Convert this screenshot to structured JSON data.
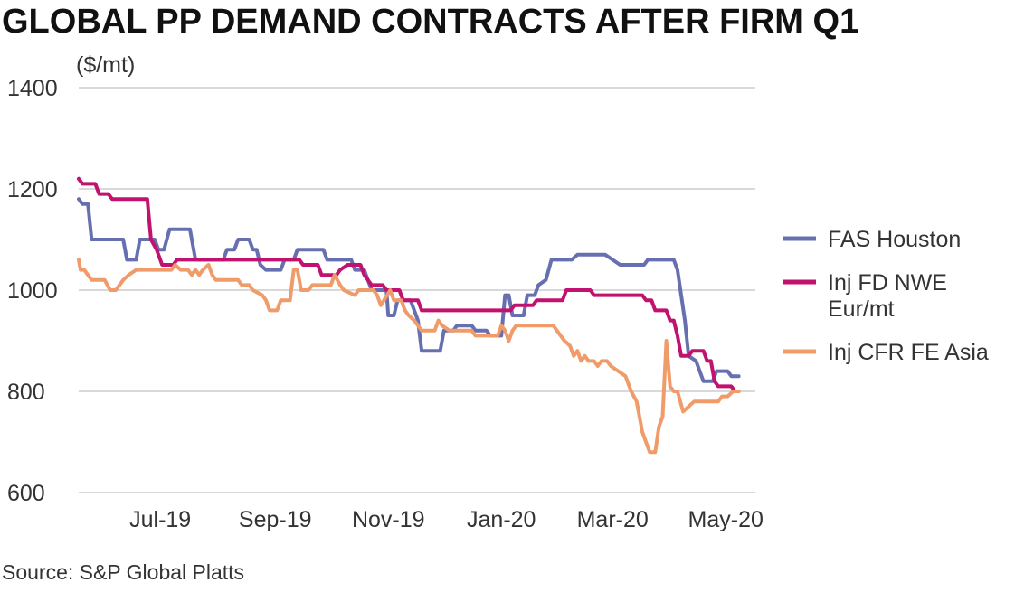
{
  "chart_data": {
    "type": "line",
    "title": "GLOBAL PP DEMAND CONTRACTS AFTER FIRM Q1",
    "ylabel": "($/mt)",
    "xlabel": "",
    "ylim": [
      600,
      1400
    ],
    "yticks": [
      600,
      800,
      1000,
      1200,
      1400
    ],
    "xlim": [
      "2019-06-01",
      "2020-05-31"
    ],
    "xticks": [
      {
        "label": "Jul-19",
        "date": "2019-07-01"
      },
      {
        "label": "Sep-19",
        "date": "2019-09-01"
      },
      {
        "label": "Nov-19",
        "date": "2019-11-01"
      },
      {
        "label": "Jan-20",
        "date": "2020-01-01"
      },
      {
        "label": "Mar-20",
        "date": "2020-03-01"
      },
      {
        "label": "May-20",
        "date": "2020-05-01"
      }
    ],
    "grid": true,
    "legend_position": "right",
    "series": [
      {
        "name": "FAS Houston",
        "color": "#6670b0",
        "points": [
          [
            "2019-06-01",
            1180
          ],
          [
            "2019-06-03",
            1170
          ],
          [
            "2019-06-06",
            1170
          ],
          [
            "2019-06-08",
            1100
          ],
          [
            "2019-06-25",
            1100
          ],
          [
            "2019-06-27",
            1060
          ],
          [
            "2019-07-02",
            1060
          ],
          [
            "2019-07-04",
            1100
          ],
          [
            "2019-07-12",
            1100
          ],
          [
            "2019-07-14",
            1080
          ],
          [
            "2019-07-17",
            1080
          ],
          [
            "2019-07-20",
            1120
          ],
          [
            "2019-07-31",
            1120
          ],
          [
            "2019-08-03",
            1060
          ],
          [
            "2019-08-18",
            1060
          ],
          [
            "2019-08-20",
            1080
          ],
          [
            "2019-08-24",
            1080
          ],
          [
            "2019-08-26",
            1100
          ],
          [
            "2019-09-01",
            1100
          ],
          [
            "2019-09-03",
            1080
          ],
          [
            "2019-09-05",
            1080
          ],
          [
            "2019-09-07",
            1050
          ],
          [
            "2019-09-10",
            1040
          ],
          [
            "2019-09-18",
            1040
          ],
          [
            "2019-09-20",
            1060
          ],
          [
            "2019-09-25",
            1060
          ],
          [
            "2019-09-27",
            1080
          ],
          [
            "2019-10-11",
            1080
          ],
          [
            "2019-10-13",
            1060
          ],
          [
            "2019-10-26",
            1060
          ],
          [
            "2019-10-28",
            1040
          ],
          [
            "2019-11-02",
            1040
          ],
          [
            "2019-11-04",
            1020
          ],
          [
            "2019-11-06",
            1000
          ],
          [
            "2019-11-14",
            1000
          ],
          [
            "2019-11-15",
            950
          ],
          [
            "2019-11-18",
            950
          ],
          [
            "2019-11-20",
            980
          ],
          [
            "2019-11-27",
            980
          ],
          [
            "2019-12-01",
            940
          ],
          [
            "2019-12-03",
            880
          ],
          [
            "2019-12-13",
            880
          ],
          [
            "2019-12-15",
            920
          ],
          [
            "2019-12-20",
            920
          ],
          [
            "2019-12-22",
            930
          ],
          [
            "2019-12-30",
            930
          ],
          [
            "2020-01-01",
            920
          ],
          [
            "2020-01-07",
            920
          ],
          [
            "2020-01-09",
            910
          ],
          [
            "2020-01-15",
            910
          ],
          [
            "2020-01-17",
            990
          ],
          [
            "2020-01-19",
            990
          ],
          [
            "2020-01-21",
            950
          ],
          [
            "2020-01-27",
            950
          ],
          [
            "2020-01-29",
            990
          ],
          [
            "2020-02-02",
            990
          ],
          [
            "2020-02-04",
            1010
          ],
          [
            "2020-02-08",
            1020
          ],
          [
            "2020-02-11",
            1060
          ],
          [
            "2020-02-22",
            1060
          ],
          [
            "2020-02-25",
            1070
          ],
          [
            "2020-03-11",
            1070
          ],
          [
            "2020-03-15",
            1060
          ],
          [
            "2020-03-19",
            1050
          ],
          [
            "2020-04-01",
            1050
          ],
          [
            "2020-04-03",
            1060
          ],
          [
            "2020-04-17",
            1060
          ],
          [
            "2020-04-19",
            1040
          ],
          [
            "2020-04-21",
            990
          ],
          [
            "2020-04-23",
            940
          ],
          [
            "2020-04-25",
            870
          ],
          [
            "2020-04-29",
            860
          ],
          [
            "2020-05-03",
            820
          ],
          [
            "2020-05-08",
            820
          ],
          [
            "2020-05-10",
            840
          ],
          [
            "2020-05-16",
            840
          ],
          [
            "2020-05-18",
            830
          ],
          [
            "2020-05-22",
            830
          ]
        ]
      },
      {
        "name": "Inj FD NWE Eur/mt",
        "color": "#c0126e",
        "points": [
          [
            "2019-06-01",
            1220
          ],
          [
            "2019-06-03",
            1210
          ],
          [
            "2019-06-10",
            1210
          ],
          [
            "2019-06-12",
            1190
          ],
          [
            "2019-06-17",
            1190
          ],
          [
            "2019-06-19",
            1180
          ],
          [
            "2019-07-08",
            1180
          ],
          [
            "2019-07-10",
            1100
          ],
          [
            "2019-07-13",
            1080
          ],
          [
            "2019-07-16",
            1050
          ],
          [
            "2019-07-22",
            1050
          ],
          [
            "2019-07-24",
            1060
          ],
          [
            "2019-09-28",
            1060
          ],
          [
            "2019-09-30",
            1050
          ],
          [
            "2019-10-08",
            1050
          ],
          [
            "2019-10-10",
            1030
          ],
          [
            "2019-10-18",
            1030
          ],
          [
            "2019-10-20",
            1040
          ],
          [
            "2019-10-24",
            1050
          ],
          [
            "2019-10-31",
            1050
          ],
          [
            "2019-11-02",
            1030
          ],
          [
            "2019-11-06",
            1010
          ],
          [
            "2019-11-12",
            1010
          ],
          [
            "2019-11-14",
            1000
          ],
          [
            "2019-11-21",
            1000
          ],
          [
            "2019-11-23",
            980
          ],
          [
            "2019-12-01",
            980
          ],
          [
            "2019-12-03",
            960
          ],
          [
            "2020-01-20",
            960
          ],
          [
            "2020-01-22",
            970
          ],
          [
            "2020-02-01",
            970
          ],
          [
            "2020-02-03",
            980
          ],
          [
            "2020-02-17",
            980
          ],
          [
            "2020-02-19",
            1000
          ],
          [
            "2020-03-03",
            1000
          ],
          [
            "2020-03-05",
            990
          ],
          [
            "2020-03-31",
            990
          ],
          [
            "2020-04-02",
            980
          ],
          [
            "2020-04-05",
            980
          ],
          [
            "2020-04-07",
            960
          ],
          [
            "2020-04-13",
            960
          ],
          [
            "2020-04-15",
            940
          ],
          [
            "2020-04-17",
            940
          ],
          [
            "2020-04-19",
            910
          ],
          [
            "2020-04-21",
            870
          ],
          [
            "2020-04-25",
            870
          ],
          [
            "2020-04-27",
            880
          ],
          [
            "2020-05-03",
            880
          ],
          [
            "2020-05-05",
            860
          ],
          [
            "2020-05-07",
            860
          ],
          [
            "2020-05-09",
            820
          ],
          [
            "2020-05-11",
            810
          ],
          [
            "2020-05-18",
            810
          ],
          [
            "2020-05-20",
            800
          ],
          [
            "2020-05-22",
            800
          ]
        ]
      },
      {
        "name": "Inj CFR FE Asia",
        "color": "#f09c6a",
        "points": [
          [
            "2019-06-01",
            1060
          ],
          [
            "2019-06-02",
            1040
          ],
          [
            "2019-06-04",
            1040
          ],
          [
            "2019-06-06",
            1030
          ],
          [
            "2019-06-08",
            1020
          ],
          [
            "2019-06-15",
            1020
          ],
          [
            "2019-06-18",
            1000
          ],
          [
            "2019-06-21",
            1000
          ],
          [
            "2019-06-23",
            1010
          ],
          [
            "2019-06-25",
            1020
          ],
          [
            "2019-06-28",
            1030
          ],
          [
            "2019-07-02",
            1040
          ],
          [
            "2019-07-21",
            1040
          ],
          [
            "2019-07-23",
            1050
          ],
          [
            "2019-07-26",
            1040
          ],
          [
            "2019-07-30",
            1040
          ],
          [
            "2019-08-01",
            1030
          ],
          [
            "2019-08-03",
            1040
          ],
          [
            "2019-08-05",
            1030
          ],
          [
            "2019-08-07",
            1040
          ],
          [
            "2019-08-10",
            1050
          ],
          [
            "2019-08-12",
            1030
          ],
          [
            "2019-08-14",
            1020
          ],
          [
            "2019-08-26",
            1020
          ],
          [
            "2019-08-28",
            1010
          ],
          [
            "2019-09-01",
            1010
          ],
          [
            "2019-09-03",
            1000
          ],
          [
            "2019-09-08",
            990
          ],
          [
            "2019-09-10",
            980
          ],
          [
            "2019-09-12",
            960
          ],
          [
            "2019-09-16",
            960
          ],
          [
            "2019-09-18",
            980
          ],
          [
            "2019-09-23",
            980
          ],
          [
            "2019-09-25",
            1040
          ],
          [
            "2019-09-27",
            1040
          ],
          [
            "2019-09-29",
            1000
          ],
          [
            "2019-10-03",
            1000
          ],
          [
            "2019-10-05",
            1010
          ],
          [
            "2019-10-15",
            1010
          ],
          [
            "2019-10-17",
            1030
          ],
          [
            "2019-10-20",
            1010
          ],
          [
            "2019-10-22",
            1000
          ],
          [
            "2019-10-28",
            990
          ],
          [
            "2019-10-30",
            1000
          ],
          [
            "2019-11-07",
            1000
          ],
          [
            "2019-11-09",
            990
          ],
          [
            "2019-11-11",
            970
          ],
          [
            "2019-11-16",
            1000
          ],
          [
            "2019-11-18",
            980
          ],
          [
            "2019-11-22",
            980
          ],
          [
            "2019-11-24",
            960
          ],
          [
            "2019-11-26",
            950
          ],
          [
            "2019-11-29",
            940
          ],
          [
            "2019-12-01",
            930
          ],
          [
            "2019-12-03",
            920
          ],
          [
            "2019-12-10",
            920
          ],
          [
            "2019-12-12",
            940
          ],
          [
            "2019-12-14",
            930
          ],
          [
            "2019-12-18",
            920
          ],
          [
            "2019-12-30",
            920
          ],
          [
            "2020-01-01",
            910
          ],
          [
            "2020-01-13",
            910
          ],
          [
            "2020-01-15",
            930
          ],
          [
            "2020-01-17",
            920
          ],
          [
            "2020-01-19",
            900
          ],
          [
            "2020-01-21",
            920
          ],
          [
            "2020-01-23",
            930
          ],
          [
            "2020-02-12",
            930
          ],
          [
            "2020-02-14",
            920
          ],
          [
            "2020-02-16",
            910
          ],
          [
            "2020-02-18",
            900
          ],
          [
            "2020-02-21",
            890
          ],
          [
            "2020-02-23",
            870
          ],
          [
            "2020-02-25",
            880
          ],
          [
            "2020-02-27",
            860
          ],
          [
            "2020-02-29",
            870
          ],
          [
            "2020-03-02",
            860
          ],
          [
            "2020-03-05",
            860
          ],
          [
            "2020-03-07",
            850
          ],
          [
            "2020-03-09",
            860
          ],
          [
            "2020-03-12",
            860
          ],
          [
            "2020-03-14",
            850
          ],
          [
            "2020-03-18",
            840
          ],
          [
            "2020-03-22",
            830
          ],
          [
            "2020-03-25",
            800
          ],
          [
            "2020-03-28",
            780
          ],
          [
            "2020-03-31",
            720
          ],
          [
            "2020-04-02",
            700
          ],
          [
            "2020-04-04",
            680
          ],
          [
            "2020-04-07",
            680
          ],
          [
            "2020-04-09",
            730
          ],
          [
            "2020-04-11",
            750
          ],
          [
            "2020-04-13",
            900
          ],
          [
            "2020-04-15",
            810
          ],
          [
            "2020-04-17",
            800
          ],
          [
            "2020-04-19",
            800
          ],
          [
            "2020-04-22",
            760
          ],
          [
            "2020-04-25",
            770
          ],
          [
            "2020-04-28",
            780
          ],
          [
            "2020-05-11",
            780
          ],
          [
            "2020-05-13",
            790
          ],
          [
            "2020-05-16",
            790
          ],
          [
            "2020-05-19",
            800
          ],
          [
            "2020-05-22",
            800
          ]
        ]
      }
    ]
  },
  "unit_label": "($/mt)",
  "legend": {
    "items": [
      {
        "lines": [
          "FAS Houston"
        ],
        "color": "#6670b0"
      },
      {
        "lines": [
          "Inj FD NWE",
          "Eur/mt"
        ],
        "color": "#c0126e"
      },
      {
        "lines": [
          "Inj CFR FE Asia"
        ],
        "color": "#f09c6a"
      }
    ]
  },
  "source": "Source: S&P Global Platts"
}
